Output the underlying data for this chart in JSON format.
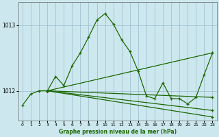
{
  "title": "Graphe pression niveau de la mer (hPa)",
  "bg_color": "#cce8ee",
  "grid_color": "#99bbcc",
  "line_color": "#1a6600",
  "xlim": [
    -0.5,
    23.5
  ],
  "ylim": [
    1011.55,
    1013.35
  ],
  "yticks": [
    1012,
    1013
  ],
  "xticks": [
    0,
    1,
    2,
    3,
    4,
    5,
    6,
    7,
    8,
    9,
    10,
    11,
    12,
    13,
    14,
    15,
    16,
    17,
    18,
    19,
    20,
    21,
    22,
    23
  ],
  "xlabel_color": "#1a6600",
  "series_main": {
    "x": [
      0,
      1,
      2,
      3,
      4,
      5,
      6,
      7,
      8,
      9,
      10,
      11,
      12,
      13,
      14,
      15,
      16,
      17,
      18,
      19,
      20,
      21,
      22,
      23
    ],
    "y": [
      1011.78,
      1011.95,
      1012.0,
      1012.0,
      1012.22,
      1012.08,
      1012.38,
      1012.58,
      1012.82,
      1013.08,
      1013.18,
      1013.02,
      1012.78,
      1012.6,
      1012.3,
      1011.92,
      1011.88,
      1012.12,
      1011.88,
      1011.88,
      1011.8,
      1011.9,
      1012.25,
      1012.58
    ]
  },
  "series_fan": [
    {
      "x": [
        3,
        23
      ],
      "y": [
        1012.0,
        1012.58
      ]
    },
    {
      "x": [
        3,
        23
      ],
      "y": [
        1012.0,
        1011.9
      ]
    },
    {
      "x": [
        3,
        23
      ],
      "y": [
        1012.0,
        1011.7
      ]
    },
    {
      "x": [
        3,
        23
      ],
      "y": [
        1012.0,
        1011.6
      ]
    }
  ]
}
